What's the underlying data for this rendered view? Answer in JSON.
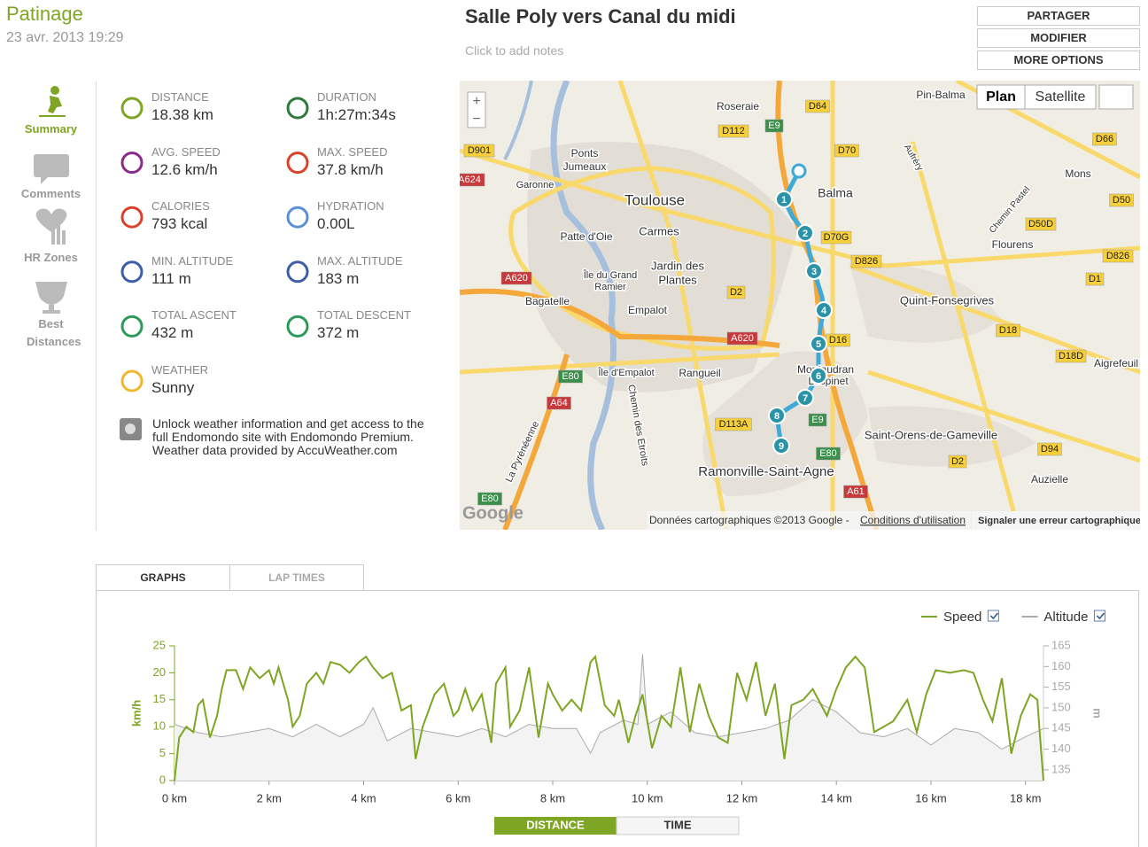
{
  "header": {
    "sport": "Patinage",
    "date": "23 avr. 2013 19:29",
    "title": "Salle Poly vers Canal du midi",
    "notes": "Click to add notes"
  },
  "buttons": [
    "PARTAGER",
    "MODIFIER",
    "MORE OPTIONS"
  ],
  "nav": [
    "Summary",
    "Comments",
    "HR Zones",
    "Best Distances"
  ],
  "stats": [
    {
      "label": "DISTANCE",
      "value": "18.38 km"
    },
    {
      "label": "DURATION",
      "value": "1h:27m:34s"
    },
    {
      "label": "AVG. SPEED",
      "value": "12.6 km/h"
    },
    {
      "label": "MAX. SPEED",
      "value": "37.8 km/h"
    },
    {
      "label": "CALORIES",
      "value": "793 kcal"
    },
    {
      "label": "HYDRATION",
      "value": "0.00L"
    },
    {
      "label": "MIN. ALTITUDE",
      "value": "111 m"
    },
    {
      "label": "MAX. ALTITUDE",
      "value": "183 m"
    },
    {
      "label": "TOTAL ASCENT",
      "value": "432 m"
    },
    {
      "label": "TOTAL DESCENT",
      "value": "372 m"
    },
    {
      "label": "WEATHER",
      "value": "Sunny"
    }
  ],
  "weather_note": {
    "text": "Unlock weather information and get access to the full Endomondo site with Endomondo Premium.",
    "source": "Weather data provided by AccuWeather.com"
  },
  "map": {
    "labels": [
      "Toulouse",
      "Balma",
      "Carmes",
      "Jardin des",
      "Plantes",
      "Patte d'Oie",
      "Ponts",
      "Jumeaux",
      "Bagatelle",
      "Empalot",
      "Rangueil",
      "Ramonville-Saint-Agne",
      "Quint-Fonsegrives",
      "Saint-Orens-de-Gameville",
      "Flourens",
      "Mons",
      "Auzielle",
      "Aigrefeuil",
      "Pin-Balma",
      "Roseraie",
      "Île du Grand",
      "Ramier",
      "Île d'Empalot",
      "Montaudran",
      "Lespinet",
      "Garonne",
      "Chemin des Etroits",
      "La Pyrénéenne",
      "Aufréry",
      "Chemin Pastel"
    ],
    "roads": [
      "D64",
      "E9",
      "D112",
      "D70",
      "D901",
      "A624",
      "D70G",
      "D826",
      "A620",
      "D2",
      "D16",
      "A620",
      "E80",
      "A64",
      "D113A",
      "E9",
      "E80",
      "A61",
      "D18",
      "D18D",
      "D2",
      "D94",
      "D1",
      "D826",
      "D50D",
      "D50",
      "D66",
      "E80"
    ],
    "markers": [
      "1",
      "2",
      "3",
      "4",
      "5",
      "6",
      "7",
      "8",
      "9"
    ],
    "zoom": [
      "+",
      "−"
    ],
    "map_types": [
      "Plan",
      "Satellite"
    ],
    "logo": "Google",
    "attribution": "Données cartographiques ©2013 Google - ",
    "terms": "Conditions d'utilisation",
    "report": "Signaler une erreur cartographique"
  },
  "tabs": [
    "GRAPHS",
    "LAP TIMES"
  ],
  "toggle": [
    "DISTANCE",
    "TIME"
  ],
  "chart_data": {
    "type": "line",
    "y_label": "km/h",
    "y2_label": "m",
    "xlim": [
      0,
      18.38
    ],
    "xticks": [
      {
        "value": 0,
        "label": "0 km"
      },
      {
        "value": 2,
        "label": "2 km"
      },
      {
        "value": 4,
        "label": "4 km"
      },
      {
        "value": 6,
        "label": "6 km"
      },
      {
        "value": 8,
        "label": "8 km"
      },
      {
        "value": 10,
        "label": "10 km"
      },
      {
        "value": 12,
        "label": "12 km"
      },
      {
        "value": 14,
        "label": "14 km"
      },
      {
        "value": 16,
        "label": "16 km"
      },
      {
        "value": 18,
        "label": "18 km"
      }
    ],
    "ylim": [
      0,
      25
    ],
    "yticks": [
      0,
      5,
      10,
      15,
      20,
      25
    ],
    "y2lim": [
      132.4,
      165
    ],
    "y2ticks": [
      135,
      140,
      145,
      150,
      155,
      160,
      165
    ],
    "legend": "top-right",
    "series": [
      {
        "name": "Speed",
        "color": "#7ea523",
        "x": [
          0,
          0.1,
          0.25,
          0.4,
          0.5,
          0.6,
          0.75,
          0.9,
          1.0,
          1.1,
          1.3,
          1.45,
          1.6,
          1.8,
          2.0,
          2.1,
          2.2,
          2.4,
          2.5,
          2.65,
          2.8,
          3.0,
          3.15,
          3.3,
          3.5,
          3.7,
          3.9,
          4.05,
          4.2,
          4.4,
          4.6,
          4.8,
          5.0,
          5.1,
          5.25,
          5.5,
          5.7,
          5.9,
          6.0,
          6.15,
          6.3,
          6.5,
          6.7,
          6.8,
          7.0,
          7.1,
          7.3,
          7.5,
          7.7,
          7.9,
          8.0,
          8.2,
          8.4,
          8.6,
          8.8,
          8.9,
          9.1,
          9.3,
          9.4,
          9.6,
          9.75,
          9.9,
          10.1,
          10.3,
          10.5,
          10.7,
          10.9,
          11.1,
          11.3,
          11.5,
          11.7,
          11.9,
          12.1,
          12.3,
          12.5,
          12.7,
          12.9,
          13.05,
          13.3,
          13.5,
          13.8,
          14.0,
          14.2,
          14.4,
          14.6,
          14.8,
          15.0,
          15.2,
          15.5,
          15.7,
          15.9,
          16.1,
          16.4,
          16.7,
          16.9,
          17.1,
          17.3,
          17.5,
          17.7,
          17.9,
          18.1,
          18.25,
          18.3,
          18.38
        ],
        "values": [
          0,
          8,
          10,
          9,
          14,
          15,
          8,
          12,
          17,
          20.5,
          20.5,
          17,
          21,
          19,
          20.5,
          18,
          21,
          15,
          10,
          12,
          18,
          20,
          18,
          22,
          21.5,
          20,
          22,
          23,
          21,
          19,
          20,
          13,
          14,
          4,
          10,
          16,
          18,
          12,
          13,
          17,
          13,
          16,
          7,
          18,
          21,
          10,
          13,
          21,
          8,
          18,
          16,
          13,
          15,
          13,
          22,
          23,
          14,
          12,
          15,
          7,
          12,
          16,
          6,
          12,
          10,
          21,
          9,
          18,
          12,
          8,
          7,
          20,
          15,
          22,
          12,
          18,
          4,
          14,
          15,
          17,
          12,
          17,
          21,
          23,
          21,
          9,
          10,
          11,
          15,
          9,
          16,
          20.5,
          20,
          20.5,
          20,
          15,
          11,
          19,
          5,
          12,
          16,
          15,
          9,
          0
        ]
      },
      {
        "name": "Altitude",
        "color": "#aaaaaa",
        "axis": "y2",
        "x": [
          0,
          0.5,
          1,
          1.5,
          2,
          2.5,
          3,
          3.5,
          4,
          4.2,
          4.5,
          5,
          5.5,
          6,
          6.5,
          7,
          7.5,
          8,
          8.5,
          8.8,
          9,
          9.5,
          9.8,
          9.9,
          10,
          10.5,
          11,
          11.5,
          12,
          12.5,
          13,
          13.5,
          14,
          14.5,
          15,
          15.5,
          16,
          16.5,
          17,
          17.5,
          18,
          18.38
        ],
        "values": [
          146,
          144,
          143,
          144,
          145,
          143,
          146,
          143,
          146,
          150,
          142,
          145,
          144,
          143,
          145,
          143,
          146,
          145,
          145,
          139,
          144,
          147,
          146,
          163,
          146,
          149,
          144,
          143,
          144,
          145,
          147,
          152,
          149,
          144,
          143,
          145,
          141,
          145,
          144,
          140,
          143,
          145
        ]
      }
    ]
  }
}
